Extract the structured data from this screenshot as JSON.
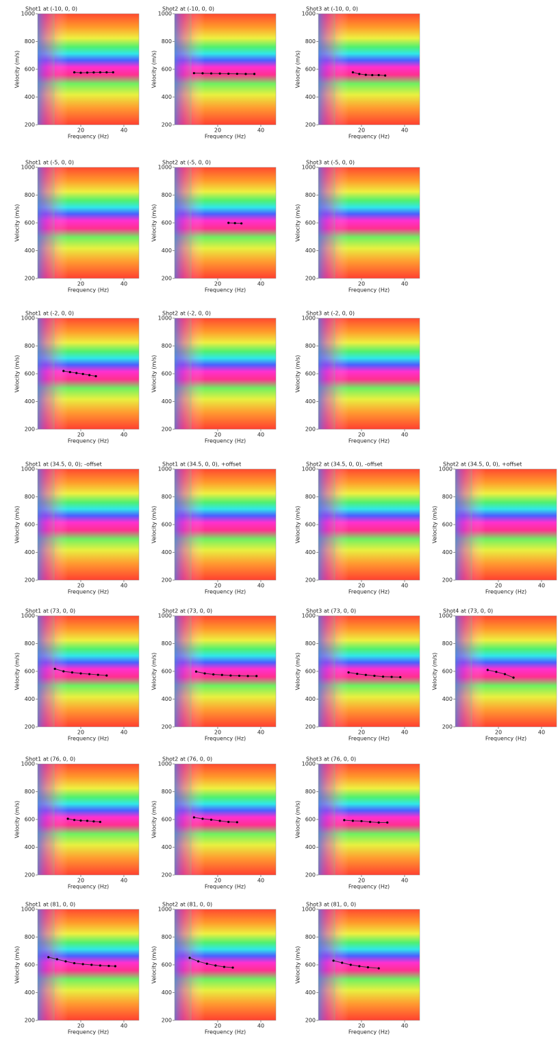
{
  "chart_data": [
    {
      "type": "line",
      "title": "Shot1 at (-10, 0, 0)",
      "xlabel": "Frequency (Hz)",
      "ylabel": "Velocity (m/s)",
      "xlim": [
        0,
        47
      ],
      "ylim": [
        200,
        1000
      ],
      "xticks": [
        20,
        40
      ],
      "yticks": [
        200,
        400,
        600,
        800,
        1000
      ],
      "color": "#000000",
      "x": [
        17,
        20,
        23,
        26,
        29,
        32,
        35
      ],
      "values": [
        578,
        575,
        576,
        577,
        578,
        578,
        578
      ]
    },
    {
      "type": "line",
      "title": "Shot2 at (-10, 0, 0)",
      "xlabel": "Frequency (Hz)",
      "ylabel": "Velocity (m/s)",
      "xlim": [
        0,
        47
      ],
      "ylim": [
        200,
        1000
      ],
      "xticks": [
        20,
        40
      ],
      "yticks": [
        200,
        400,
        600,
        800,
        1000
      ],
      "color": "#000000",
      "x": [
        9,
        13,
        17,
        21,
        25,
        29,
        33,
        37
      ],
      "values": [
        572,
        571,
        570,
        569,
        568,
        567,
        566,
        566
      ]
    },
    {
      "type": "line",
      "title": "Shot3 at (-10, 0, 0)",
      "xlabel": "Frequency (Hz)",
      "ylabel": "Velocity (m/s)",
      "xlim": [
        0,
        47
      ],
      "ylim": [
        200,
        1000
      ],
      "xticks": [
        20,
        40
      ],
      "yticks": [
        200,
        400,
        600,
        800,
        1000
      ],
      "color": "#000000",
      "x": [
        16,
        19,
        22,
        25,
        28,
        31
      ],
      "values": [
        578,
        566,
        560,
        558,
        558,
        555
      ]
    },
    {
      "type": "line",
      "title": "Shot1 at (-5, 0, 0)",
      "xlabel": "Frequency (Hz)",
      "ylabel": "Velocity (m/s)",
      "xlim": [
        0,
        47
      ],
      "ylim": [
        200,
        1000
      ],
      "xticks": [
        20,
        40
      ],
      "yticks": [
        200,
        400,
        600,
        800,
        1000
      ],
      "color": "#000000"
    },
    {
      "type": "line",
      "title": "Shot2 at (-5, 0, 0)",
      "xlabel": "Frequency (Hz)",
      "ylabel": "Velocity (m/s)",
      "xlim": [
        0,
        47
      ],
      "ylim": [
        200,
        1000
      ],
      "xticks": [
        20,
        40
      ],
      "yticks": [
        200,
        400,
        600,
        800,
        1000
      ],
      "color": "#000000",
      "x": [
        25,
        28,
        31
      ],
      "values": [
        600,
        598,
        596
      ]
    },
    {
      "type": "line",
      "title": "Shot3 at (-5, 0, 0)",
      "xlabel": "Frequency (Hz)",
      "ylabel": "Velocity (m/s)",
      "xlim": [
        0,
        47
      ],
      "ylim": [
        200,
        1000
      ],
      "xticks": [
        20,
        40
      ],
      "yticks": [
        200,
        400,
        600,
        800,
        1000
      ],
      "color": "#000000"
    },
    {
      "type": "line",
      "title": "Shot1 at (-2, 0, 0)",
      "xlabel": "Frequency (Hz)",
      "ylabel": "Velocity (m/s)",
      "xlim": [
        0,
        47
      ],
      "ylim": [
        200,
        1000
      ],
      "xticks": [
        20,
        40
      ],
      "yticks": [
        200,
        400,
        600,
        800,
        1000
      ],
      "color": "#000000",
      "x": [
        12,
        15,
        18,
        21,
        24,
        27
      ],
      "values": [
        620,
        612,
        605,
        598,
        590,
        582
      ]
    },
    {
      "type": "line",
      "title": "Shot2 at (-2, 0, 0)",
      "xlabel": "Frequency (Hz)",
      "ylabel": "Velocity (m/s)",
      "xlim": [
        0,
        47
      ],
      "ylim": [
        200,
        1000
      ],
      "xticks": [
        20,
        40
      ],
      "yticks": [
        200,
        400,
        600,
        800,
        1000
      ],
      "color": "#000000"
    },
    {
      "type": "line",
      "title": "Shot3 at (-2, 0, 0)",
      "xlabel": "Frequency (Hz)",
      "ylabel": "Velocity (m/s)",
      "xlim": [
        0,
        47
      ],
      "ylim": [
        200,
        1000
      ],
      "xticks": [
        20,
        40
      ],
      "yticks": [
        200,
        400,
        600,
        800,
        1000
      ],
      "color": "#000000"
    },
    {
      "type": "line",
      "title": "Shot1 at (34.5, 0, 0); -offset",
      "xlabel": "Frequency (Hz)",
      "ylabel": "Velocity (m/s)",
      "xlim": [
        0,
        47
      ],
      "ylim": [
        200,
        1000
      ],
      "xticks": [
        20,
        40
      ],
      "yticks": [
        200,
        400,
        600,
        800,
        1000
      ],
      "color": "#000000"
    },
    {
      "type": "line",
      "title": "Shot1 at (34.5, 0, 0), +offset",
      "xlabel": "Frequency (Hz)",
      "ylabel": "Velocity (m/s)",
      "xlim": [
        0,
        47
      ],
      "ylim": [
        200,
        1000
      ],
      "xticks": [
        20,
        40
      ],
      "yticks": [
        200,
        400,
        600,
        800,
        1000
      ],
      "color": "#000000"
    },
    {
      "type": "line",
      "title": "Shot2 at (34.5, 0, 0), -offset",
      "xlabel": "Frequency (Hz)",
      "ylabel": "Velocity (m/s)",
      "xlim": [
        0,
        47
      ],
      "ylim": [
        200,
        1000
      ],
      "xticks": [
        20,
        40
      ],
      "yticks": [
        200,
        400,
        600,
        800,
        1000
      ],
      "color": "#000000"
    },
    {
      "type": "line",
      "title": "Shot2 at (34.5, 0, 0), +offset",
      "xlabel": "Frequency (Hz)",
      "ylabel": "Velocity (m/s)",
      "xlim": [
        0,
        47
      ],
      "ylim": [
        200,
        1000
      ],
      "xticks": [
        20,
        40
      ],
      "yticks": [
        200,
        400,
        600,
        800,
        1000
      ],
      "color": "#000000"
    },
    {
      "type": "line",
      "title": "Shot1 at (73, 0, 0)",
      "xlabel": "Frequency (Hz)",
      "ylabel": "Velocity (m/s)",
      "xlim": [
        0,
        47
      ],
      "ylim": [
        200,
        1000
      ],
      "xticks": [
        20,
        40
      ],
      "yticks": [
        200,
        400,
        600,
        800,
        1000
      ],
      "color": "#000000",
      "x": [
        8,
        12,
        16,
        20,
        24,
        28,
        32
      ],
      "values": [
        618,
        600,
        592,
        585,
        580,
        575,
        570
      ]
    },
    {
      "type": "line",
      "title": "Shot2 at (73, 0, 0)",
      "xlabel": "Frequency (Hz)",
      "ylabel": "Velocity (m/s)",
      "xlim": [
        0,
        47
      ],
      "ylim": [
        200,
        1000
      ],
      "xticks": [
        20,
        40
      ],
      "yticks": [
        200,
        400,
        600,
        800,
        1000
      ],
      "color": "#000000",
      "x": [
        10,
        14,
        18,
        22,
        26,
        30,
        34,
        38
      ],
      "values": [
        598,
        585,
        578,
        574,
        570,
        568,
        566,
        566
      ]
    },
    {
      "type": "line",
      "title": "Shot3 at (73, 0, 0)",
      "xlabel": "Frequency (Hz)",
      "ylabel": "Velocity (m/s)",
      "xlim": [
        0,
        47
      ],
      "ylim": [
        200,
        1000
      ],
      "xticks": [
        20,
        40
      ],
      "yticks": [
        200,
        400,
        600,
        800,
        1000
      ],
      "color": "#000000",
      "x": [
        14,
        18,
        22,
        26,
        30,
        34,
        38
      ],
      "values": [
        592,
        582,
        574,
        568,
        562,
        560,
        558
      ]
    },
    {
      "type": "line",
      "title": "Shot4 at (73, 0, 0)",
      "xlabel": "Frequency (Hz)",
      "ylabel": "Velocity (m/s)",
      "xlim": [
        0,
        47
      ],
      "ylim": [
        200,
        1000
      ],
      "xticks": [
        20,
        40
      ],
      "yticks": [
        200,
        400,
        600,
        800,
        1000
      ],
      "color": "#000000",
      "x": [
        15,
        19,
        23,
        27
      ],
      "values": [
        610,
        596,
        580,
        555
      ]
    },
    {
      "type": "line",
      "title": "Shot1 at (76, 0, 0)",
      "xlabel": "Frequency (Hz)",
      "ylabel": "Velocity (m/s)",
      "xlim": [
        0,
        47
      ],
      "ylim": [
        200,
        1000
      ],
      "xticks": [
        20,
        40
      ],
      "yticks": [
        200,
        400,
        600,
        800,
        1000
      ],
      "color": "#000000",
      "x": [
        14,
        17,
        20,
        23,
        26,
        29
      ],
      "values": [
        605,
        596,
        592,
        590,
        586,
        582
      ]
    },
    {
      "type": "line",
      "title": "Shot2 at (76, 0, 0)",
      "xlabel": "Frequency (Hz)",
      "ylabel": "Velocity (m/s)",
      "xlim": [
        0,
        47
      ],
      "ylim": [
        200,
        1000
      ],
      "xticks": [
        20,
        40
      ],
      "yticks": [
        200,
        400,
        600,
        800,
        1000
      ],
      "color": "#000000",
      "x": [
        9,
        13,
        17,
        21,
        25,
        29
      ],
      "values": [
        615,
        605,
        598,
        590,
        582,
        580
      ]
    },
    {
      "type": "line",
      "title": "Shot3 at (76, 0, 0)",
      "xlabel": "Frequency (Hz)",
      "ylabel": "Velocity (m/s)",
      "xlim": [
        0,
        47
      ],
      "ylim": [
        200,
        1000
      ],
      "xticks": [
        20,
        40
      ],
      "yticks": [
        200,
        400,
        600,
        800,
        1000
      ],
      "color": "#000000",
      "x": [
        12,
        16,
        20,
        24,
        28,
        32
      ],
      "values": [
        595,
        590,
        588,
        582,
        578,
        578
      ]
    },
    {
      "type": "line",
      "title": "Shot1 at (81, 0, 0)",
      "xlabel": "Frequency (Hz)",
      "ylabel": "Velocity (m/s)",
      "xlim": [
        0,
        47
      ],
      "ylim": [
        200,
        1000
      ],
      "xticks": [
        20,
        40
      ],
      "yticks": [
        200,
        400,
        600,
        800,
        1000
      ],
      "color": "#000000",
      "x": [
        5,
        9,
        13,
        17,
        21,
        25,
        29,
        33,
        36
      ],
      "values": [
        655,
        640,
        625,
        612,
        605,
        600,
        595,
        592,
        590
      ]
    },
    {
      "type": "line",
      "title": "Shot2 at (81, 0, 0)",
      "xlabel": "Frequency (Hz)",
      "ylabel": "Velocity (m/s)",
      "xlim": [
        0,
        47
      ],
      "ylim": [
        200,
        1000
      ],
      "xticks": [
        20,
        40
      ],
      "yticks": [
        200,
        400,
        600,
        800,
        1000
      ],
      "color": "#000000",
      "x": [
        7,
        11,
        15,
        19,
        23,
        27
      ],
      "values": [
        650,
        625,
        608,
        595,
        585,
        580
      ]
    },
    {
      "type": "line",
      "title": "Shot3 at (81, 0, 0)",
      "xlabel": "Frequency (Hz)",
      "ylabel": "Velocity (m/s)",
      "xlim": [
        0,
        47
      ],
      "ylim": [
        200,
        1000
      ],
      "xticks": [
        20,
        40
      ],
      "yticks": [
        200,
        400,
        600,
        800,
        1000
      ],
      "color": "#000000",
      "x": [
        7,
        11,
        15,
        19,
        23,
        28
      ],
      "values": [
        630,
        615,
        600,
        590,
        582,
        575
      ]
    }
  ]
}
